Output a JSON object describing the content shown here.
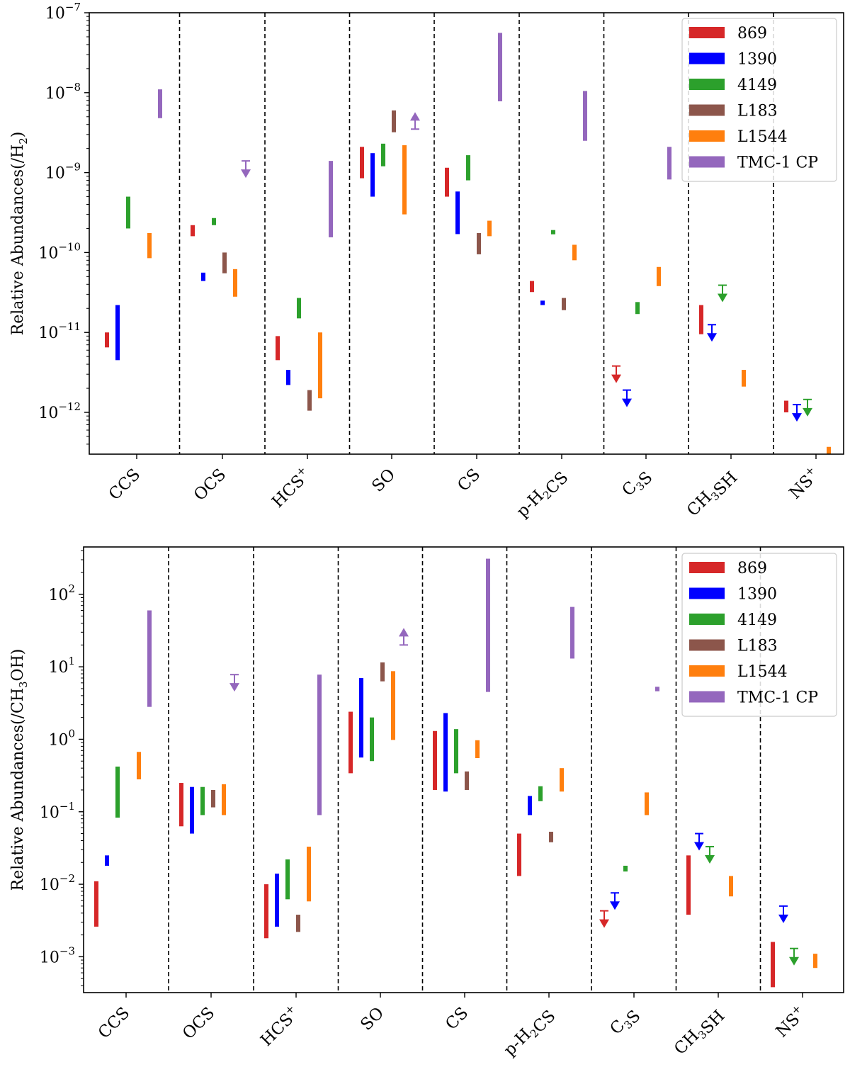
{
  "chart_data": [
    {
      "type": "range-bar",
      "ylabel": "Relative Abundances(/H₂)",
      "ylabel_parts": [
        "Relative Abundances(/H",
        "2",
        ")"
      ],
      "yscale": "log",
      "ylim": [
        3e-13,
        1e-07
      ],
      "yticks": [
        {
          "base": "10",
          "exp": "−7"
        },
        {
          "base": "10",
          "exp": "−8"
        },
        {
          "base": "10",
          "exp": "−9"
        },
        {
          "base": "10",
          "exp": "−10"
        },
        {
          "base": "10",
          "exp": "−11"
        },
        {
          "base": "10",
          "exp": "−12"
        }
      ],
      "categories": [
        "CCS",
        "OCS",
        "HCS⁺",
        "SO",
        "CS",
        "p-H₂CS",
        "C₃S",
        "CH₃SH",
        "NS⁺"
      ],
      "legend_position": "top-right",
      "series": [
        {
          "name": "869",
          "color": "#d62728",
          "ranges": [
            [
              6.5e-12,
              1e-11
            ],
            [
              1.6e-10,
              2.2e-10
            ],
            [
              4.5e-12,
              9e-12
            ],
            [
              8.5e-10,
              2.1e-09
            ],
            [
              5e-10,
              1.15e-09
            ],
            [
              3.2e-11,
              4.4e-11
            ],
            null,
            [
              9.5e-12,
              2.2e-11
            ],
            [
              1e-12,
              1.4e-12
            ]
          ],
          "upper_limits": [
            null,
            null,
            null,
            null,
            null,
            null,
            3.8e-12,
            null,
            null
          ],
          "lower_limits": [
            null,
            null,
            null,
            null,
            null,
            null,
            null,
            null,
            null
          ]
        },
        {
          "name": "1390",
          "color": "#0000ff",
          "ranges": [
            [
              4.5e-12,
              2.2e-11
            ],
            [
              4.4e-11,
              5.6e-11
            ],
            [
              2.2e-12,
              3.4e-12
            ],
            [
              5e-10,
              1.75e-09
            ],
            [
              1.7e-10,
              5.8e-10
            ],
            [
              2.2e-11,
              2.5e-11
            ],
            null,
            null,
            null
          ],
          "upper_limits": [
            null,
            null,
            null,
            null,
            null,
            null,
            1.9e-12,
            1.25e-11,
            1.25e-12
          ],
          "lower_limits": [
            null,
            null,
            null,
            null,
            null,
            null,
            null,
            null,
            null
          ]
        },
        {
          "name": "4149",
          "color": "#2ca02c",
          "ranges": [
            [
              2e-10,
              5e-10
            ],
            [
              2.2e-10,
              2.7e-10
            ],
            [
              1.5e-11,
              2.7e-11
            ],
            [
              1.2e-09,
              2.3e-09
            ],
            [
              8e-10,
              1.65e-09
            ],
            [
              1.7e-10,
              1.9e-10
            ],
            [
              1.7e-11,
              2.4e-11
            ],
            null,
            null
          ],
          "upper_limits": [
            null,
            null,
            null,
            null,
            null,
            null,
            null,
            3.9e-11,
            1.45e-12
          ],
          "lower_limits": [
            null,
            null,
            null,
            null,
            null,
            null,
            null,
            null,
            null
          ]
        },
        {
          "name": "L183",
          "color": "#8c564b",
          "ranges": [
            null,
            [
              5.5e-11,
              1e-10
            ],
            [
              1.05e-12,
              1.9e-12
            ],
            [
              3.2e-09,
              6e-09
            ],
            [
              9.5e-11,
              1.75e-10
            ],
            [
              1.9e-11,
              2.7e-11
            ],
            null,
            null,
            null
          ],
          "upper_limits": [
            null,
            null,
            null,
            null,
            null,
            null,
            null,
            null,
            null
          ],
          "lower_limits": [
            null,
            null,
            null,
            null,
            null,
            null,
            null,
            null,
            null
          ]
        },
        {
          "name": "L1544",
          "color": "#ff7f0e",
          "ranges": [
            [
              8.5e-11,
              1.75e-10
            ],
            [
              2.8e-11,
              6.2e-11
            ],
            [
              1.5e-12,
              1e-11
            ],
            [
              3e-10,
              2.2e-09
            ],
            [
              1.6e-10,
              2.5e-10
            ],
            [
              8e-11,
              1.25e-10
            ],
            [
              3.8e-11,
              6.6e-11
            ],
            [
              2.1e-12,
              3.4e-12
            ],
            [
              3e-13,
              3.7e-13
            ]
          ],
          "upper_limits": [
            null,
            null,
            null,
            null,
            null,
            null,
            null,
            null,
            null
          ],
          "lower_limits": [
            null,
            null,
            null,
            null,
            null,
            null,
            null,
            null,
            null
          ]
        },
        {
          "name": "TMC-1 CP",
          "color": "#9467bd",
          "ranges": [
            [
              4.8e-09,
              1.1e-08
            ],
            null,
            [
              1.55e-10,
              1.4e-09
            ],
            null,
            [
              7.8e-09,
              5.6e-08
            ],
            [
              2.5e-09,
              1.05e-08
            ],
            [
              8.2e-10,
              2.1e-09
            ],
            null,
            null
          ],
          "upper_limits": [
            null,
            1.4e-09,
            null,
            null,
            null,
            null,
            null,
            null,
            null
          ],
          "lower_limits": [
            null,
            null,
            null,
            3.5e-09,
            null,
            null,
            null,
            null,
            null
          ]
        }
      ]
    },
    {
      "type": "range-bar",
      "ylabel": "Relative Abundances(/CH₃OH)",
      "ylabel_parts": [
        "Relative Abundances(/CH",
        "3",
        "OH)"
      ],
      "yscale": "log",
      "ylim": [
        0.00032,
        450
      ],
      "yticks": [
        {
          "base": "10",
          "exp": "2"
        },
        {
          "base": "10",
          "exp": "1"
        },
        {
          "base": "10",
          "exp": "0"
        },
        {
          "base": "10",
          "exp": "−1"
        },
        {
          "base": "10",
          "exp": "−2"
        },
        {
          "base": "10",
          "exp": "−3"
        }
      ],
      "categories": [
        "CCS",
        "OCS",
        "HCS⁺",
        "SO",
        "CS",
        "p-H₂CS",
        "C₃S",
        "CH₃SH",
        "NS⁺"
      ],
      "legend_position": "top-right",
      "series": [
        {
          "name": "869",
          "color": "#d62728",
          "ranges": [
            [
              0.0026,
              0.011
            ],
            [
              0.063,
              0.25
            ],
            [
              0.0018,
              0.01
            ],
            [
              0.34,
              2.4
            ],
            [
              0.2,
              1.3
            ],
            [
              0.013,
              0.05
            ],
            null,
            [
              0.0038,
              0.025
            ],
            [
              0.00038,
              0.0016
            ]
          ],
          "upper_limits": [
            null,
            null,
            null,
            null,
            null,
            null,
            0.0043,
            null,
            null
          ],
          "lower_limits": [
            null,
            null,
            null,
            null,
            null,
            null,
            null,
            null,
            null
          ]
        },
        {
          "name": "1390",
          "color": "#0000ff",
          "ranges": [
            [
              0.018,
              0.025
            ],
            [
              0.05,
              0.22
            ],
            [
              0.0026,
              0.014
            ],
            [
              0.56,
              7
            ],
            [
              0.19,
              2.3
            ],
            [
              0.09,
              0.165
            ],
            null,
            null,
            null
          ],
          "upper_limits": [
            null,
            null,
            null,
            null,
            null,
            null,
            0.0076,
            0.05,
            0.005
          ],
          "lower_limits": [
            null,
            null,
            null,
            null,
            null,
            null,
            null,
            null,
            null
          ]
        },
        {
          "name": "4149",
          "color": "#2ca02c",
          "ranges": [
            [
              0.083,
              0.42
            ],
            [
              0.09,
              0.22
            ],
            [
              0.0062,
              0.022
            ],
            [
              0.5,
              2
            ],
            [
              0.34,
              1.38
            ],
            [
              0.14,
              0.225
            ],
            [
              0.015,
              0.018
            ],
            null,
            null
          ],
          "upper_limits": [
            null,
            null,
            null,
            null,
            null,
            null,
            null,
            0.033,
            0.0013
          ],
          "lower_limits": [
            null,
            null,
            null,
            null,
            null,
            null,
            null,
            null,
            null
          ]
        },
        {
          "name": "L183",
          "color": "#8c564b",
          "ranges": [
            null,
            [
              0.115,
              0.2
            ],
            [
              0.0022,
              0.0038
            ],
            [
              6.3,
              11.5
            ],
            [
              0.2,
              0.36
            ],
            [
              0.038,
              0.053
            ],
            null,
            null,
            null
          ],
          "upper_limits": [
            null,
            null,
            null,
            null,
            null,
            null,
            null,
            null,
            null
          ],
          "lower_limits": [
            null,
            null,
            null,
            null,
            null,
            null,
            null,
            null,
            null
          ]
        },
        {
          "name": "L1544",
          "color": "#ff7f0e",
          "ranges": [
            [
              0.28,
              0.67
            ],
            [
              0.09,
              0.24
            ],
            [
              0.0058,
              0.033
            ],
            [
              0.98,
              8.7
            ],
            [
              0.55,
              0.97
            ],
            [
              0.19,
              0.4
            ],
            [
              0.09,
              0.185
            ],
            [
              0.0068,
              0.013
            ],
            [
              0.0007,
              0.0011
            ]
          ],
          "upper_limits": [
            null,
            null,
            null,
            null,
            null,
            null,
            null,
            null,
            null
          ],
          "lower_limits": [
            null,
            null,
            null,
            null,
            null,
            null,
            null,
            null,
            null
          ]
        },
        {
          "name": "TMC-1 CP",
          "color": "#9467bd",
          "ranges": [
            [
              2.8,
              60
            ],
            null,
            [
              0.09,
              7.8
            ],
            null,
            [
              4.5,
              310
            ],
            [
              13,
              67
            ],
            [
              4.6,
              5.3
            ],
            null,
            null
          ],
          "upper_limits": [
            null,
            7.8,
            null,
            null,
            null,
            null,
            null,
            null,
            null
          ],
          "lower_limits": [
            null,
            null,
            null,
            20,
            null,
            null,
            null,
            null,
            null
          ]
        }
      ]
    }
  ]
}
